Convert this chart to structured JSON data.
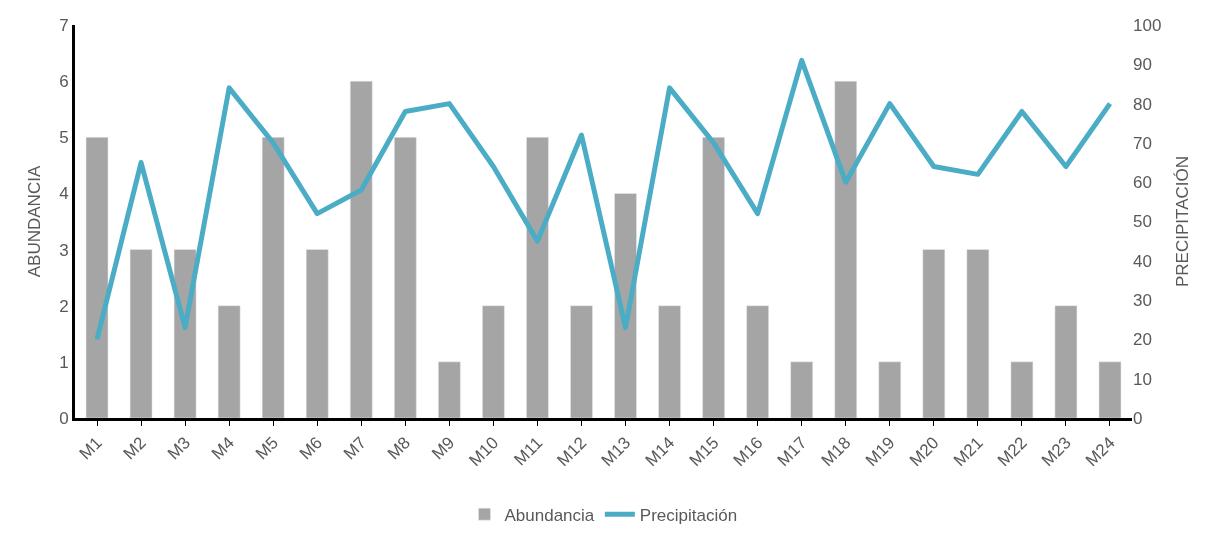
{
  "chart_data": {
    "type": "bar",
    "ylabel": "ABUNDANCIA",
    "y2label": "PRECIPITACIÓN",
    "categories": [
      "M1",
      "M2",
      "M3",
      "M4",
      "M5",
      "M6",
      "M7",
      "M8",
      "M9",
      "M10",
      "M11",
      "M12",
      "M13",
      "M14",
      "M15",
      "M16",
      "M17",
      "M18",
      "M19",
      "M20",
      "M21",
      "M22",
      "M23",
      "M24"
    ],
    "series": [
      {
        "name": "Abundancia",
        "color": "#a5a5a5",
        "values": [
          5,
          3,
          3,
          2,
          5,
          3,
          6,
          5,
          1,
          2,
          5,
          2,
          4,
          2,
          5,
          2,
          1,
          6,
          1,
          3,
          3,
          1,
          2,
          1
        ]
      },
      {
        "name": "Precipitación",
        "type": "line",
        "axis": "y2",
        "color": "#4bacc6",
        "values": [
          20,
          65,
          23,
          84,
          70,
          52,
          58,
          78,
          80,
          64,
          45,
          72,
          23,
          84,
          70,
          52,
          91,
          60,
          80,
          64,
          62,
          78,
          64,
          80
        ]
      }
    ],
    "ylim": [
      0,
      7
    ],
    "yticks": [
      0,
      1,
      2,
      3,
      4,
      5,
      6,
      7
    ],
    "y2lim": [
      0,
      100
    ],
    "y2ticks": [
      0,
      10,
      20,
      30,
      40,
      50,
      60,
      70,
      80,
      90,
      100
    ],
    "grid": false,
    "legend": "bottom",
    "marker": "none",
    "line_style": "solid"
  }
}
